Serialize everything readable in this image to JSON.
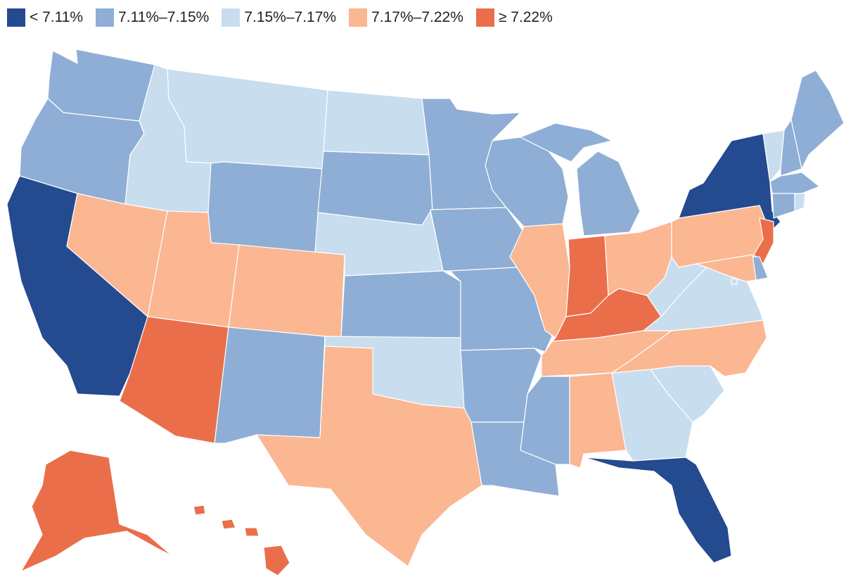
{
  "legend": [
    {
      "label": "< 7.11%",
      "color": "#244a8f",
      "bin": 1
    },
    {
      "label": "7.11%–7.15%",
      "color": "#8eaed6",
      "bin": 2
    },
    {
      "label": "7.15%–7.17%",
      "color": "#c8ddee",
      "bin": 3
    },
    {
      "label": "7.17%–7.22%",
      "color": "#fbb692",
      "bin": 4
    },
    {
      "label": "≥ 7.22%",
      "color": "#ea6e4a",
      "bin": 5
    }
  ],
  "states": [
    {
      "code": "WA",
      "bin": 2
    },
    {
      "code": "OR",
      "bin": 2
    },
    {
      "code": "CA",
      "bin": 1
    },
    {
      "code": "ID",
      "bin": 3
    },
    {
      "code": "NV",
      "bin": 4
    },
    {
      "code": "MT",
      "bin": 3
    },
    {
      "code": "WY",
      "bin": 2
    },
    {
      "code": "UT",
      "bin": 4
    },
    {
      "code": "AZ",
      "bin": 5
    },
    {
      "code": "CO",
      "bin": 4
    },
    {
      "code": "NM",
      "bin": 2
    },
    {
      "code": "ND",
      "bin": 3
    },
    {
      "code": "SD",
      "bin": 2
    },
    {
      "code": "NE",
      "bin": 3
    },
    {
      "code": "KS",
      "bin": 2
    },
    {
      "code": "OK",
      "bin": 3
    },
    {
      "code": "TX",
      "bin": 4
    },
    {
      "code": "MN",
      "bin": 2
    },
    {
      "code": "IA",
      "bin": 2
    },
    {
      "code": "MO",
      "bin": 2
    },
    {
      "code": "AR",
      "bin": 2
    },
    {
      "code": "LA",
      "bin": 2
    },
    {
      "code": "WI",
      "bin": 2
    },
    {
      "code": "IL",
      "bin": 4
    },
    {
      "code": "MI",
      "bin": 2
    },
    {
      "code": "IN",
      "bin": 5
    },
    {
      "code": "OH",
      "bin": 4
    },
    {
      "code": "KY",
      "bin": 5
    },
    {
      "code": "TN",
      "bin": 4
    },
    {
      "code": "MS",
      "bin": 2
    },
    {
      "code": "AL",
      "bin": 4
    },
    {
      "code": "GA",
      "bin": 3
    },
    {
      "code": "FL",
      "bin": 1
    },
    {
      "code": "SC",
      "bin": 3
    },
    {
      "code": "NC",
      "bin": 4
    },
    {
      "code": "VA",
      "bin": 3
    },
    {
      "code": "WV",
      "bin": 3
    },
    {
      "code": "PA",
      "bin": 4
    },
    {
      "code": "NY",
      "bin": 1
    },
    {
      "code": "VT",
      "bin": 3
    },
    {
      "code": "NH",
      "bin": 2
    },
    {
      "code": "ME",
      "bin": 2
    },
    {
      "code": "MA",
      "bin": 2
    },
    {
      "code": "CT",
      "bin": 2
    },
    {
      "code": "RI",
      "bin": 3
    },
    {
      "code": "NJ",
      "bin": 5
    },
    {
      "code": "DE",
      "bin": 2
    },
    {
      "code": "MD",
      "bin": 4
    },
    {
      "code": "DC",
      "bin": 3
    },
    {
      "code": "AK",
      "bin": 5
    },
    {
      "code": "HI",
      "bin": 5
    }
  ]
}
